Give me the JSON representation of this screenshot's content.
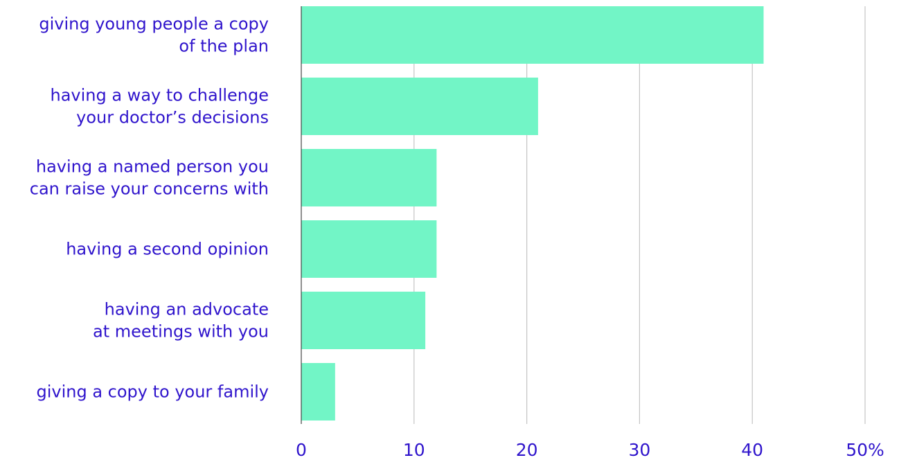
{
  "chart_data": {
    "type": "bar",
    "orientation": "horizontal",
    "categories": [
      [
        "giving young people a copy",
        "of the plan"
      ],
      [
        "having a way to challenge",
        "your doctor’s decisions"
      ],
      [
        "having a named person you",
        "can raise your concerns with"
      ],
      [
        "having a second opinion"
      ],
      [
        "having an advocate",
        "at meetings with you"
      ],
      [
        "giving a copy to your family"
      ]
    ],
    "values": [
      41,
      21,
      12,
      12,
      11,
      3
    ],
    "xlim": [
      0,
      50
    ],
    "x_ticks": [
      "0",
      "10",
      "20",
      "30",
      "40",
      "50%"
    ],
    "title": "",
    "xlabel": "",
    "ylabel": "",
    "grid": "vertical",
    "colors": {
      "bar": "#72f5c6",
      "text": "#2f14cc",
      "grid": "#c4c4c4",
      "axis": "#444444"
    }
  }
}
